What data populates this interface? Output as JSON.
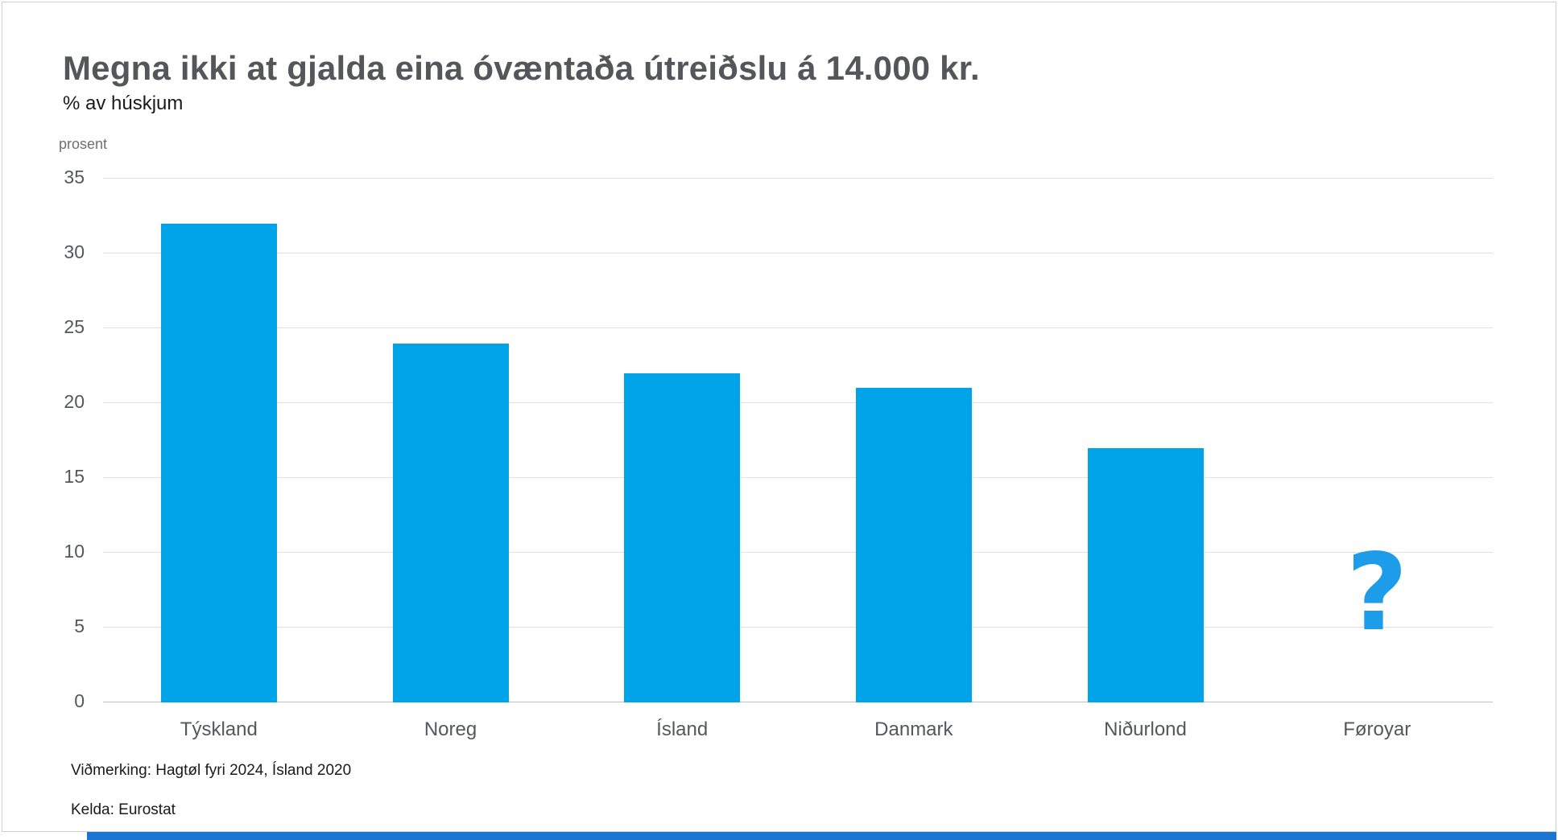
{
  "header": {
    "title": "Megna ikki at gjalda eina óvæntaða útreiðslu á 14.000 kr.",
    "subtitle": "% av húskjum"
  },
  "chart_data": {
    "type": "bar",
    "title": "Megna ikki at gjalda eina óvæntaða útreiðslu á 14.000 kr.",
    "subtitle": "% av húskjum",
    "ylabel": "prosent",
    "xlabel": "",
    "categories": [
      "Týskland",
      "Noreg",
      "Ísland",
      "Danmark",
      "Niðurlond",
      "Føroyar"
    ],
    "values": [
      32,
      24,
      22,
      21,
      17,
      null
    ],
    "missing_value_marker": "?",
    "ylim": [
      0,
      35
    ],
    "yticks": [
      0,
      5,
      10,
      15,
      20,
      25,
      30,
      35
    ],
    "grid": "horizontal",
    "legend": "none",
    "bar_color": "#00a3e8",
    "missing_marker_color": "#1d9ce9"
  },
  "footnotes": {
    "note": "Viðmerking: Hagtøl fyri 2024, Ísland 2020",
    "source": "Kelda: Eurostat"
  },
  "footer": {
    "accent_color": "#1b75d1"
  }
}
